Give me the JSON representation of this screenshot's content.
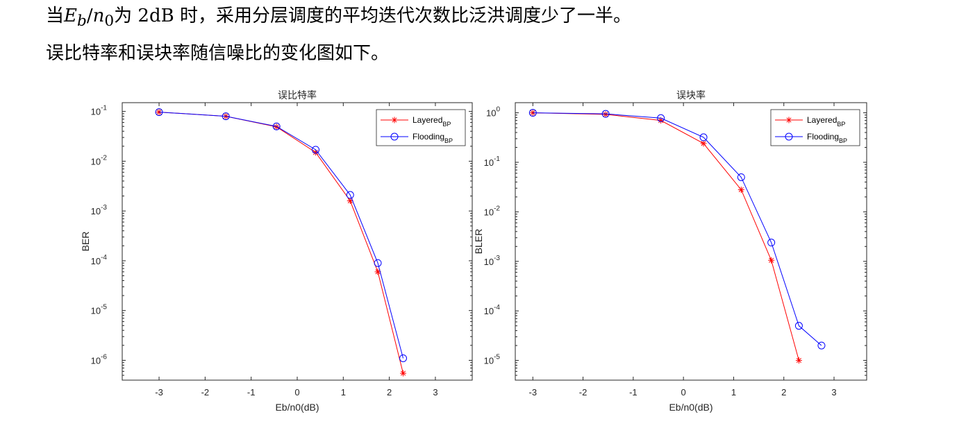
{
  "text": {
    "line1_prefix": "当",
    "var_E": "E",
    "var_E_sub": "b",
    "slash": "/",
    "var_n": "n",
    "var_n_sub": "0",
    "line1_suffix": "为 2dB 时，采用分层调度的平均迭代次数比泛洪调度少了一半。",
    "line2": "误比特率和误块率随信噪比的变化图如下。"
  },
  "chart_data": [
    {
      "type": "line",
      "title": "误比特率",
      "xlabel": "Eb/n0(dB)",
      "ylabel": "BER",
      "y_scale": "log",
      "xlim": [
        -3.8,
        3.8
      ],
      "ylim": [
        4e-07,
        0.15
      ],
      "x_ticks": [
        -3,
        -2,
        -1,
        0,
        1,
        2,
        3
      ],
      "y_ticks": [
        1e-06,
        1e-05,
        0.0001,
        0.001,
        0.01,
        0.1
      ],
      "y_tick_labels": [
        {
          "base": "10",
          "exp": "-6"
        },
        {
          "base": "10",
          "exp": "-5"
        },
        {
          "base": "10",
          "exp": "-4"
        },
        {
          "base": "10",
          "exp": "-3"
        },
        {
          "base": "10",
          "exp": "-2"
        },
        {
          "base": "10",
          "exp": "-1"
        }
      ],
      "legend_position": "top-right",
      "series": [
        {
          "name": "Layered",
          "name_sub": "BP",
          "color": "#ff0000",
          "marker": "star",
          "x": [
            -3,
            -1.55,
            -0.45,
            0.4,
            1.15,
            1.75,
            2.3
          ],
          "y": [
            0.097,
            0.08,
            0.049,
            0.015,
            0.0016,
            6e-05,
            5.5e-07
          ]
        },
        {
          "name": "Flooding",
          "name_sub": "BP",
          "color": "#0000ff",
          "marker": "circle",
          "x": [
            -3,
            -1.55,
            -0.45,
            0.4,
            1.15,
            1.75,
            2.3
          ],
          "y": [
            0.097,
            0.08,
            0.05,
            0.017,
            0.0021,
            9e-05,
            1.1e-06
          ]
        }
      ]
    },
    {
      "type": "line",
      "title": "误块率",
      "xlabel": "Eb/n0(dB)",
      "ylabel": "BLER",
      "y_scale": "log",
      "xlim": [
        -3.35,
        3.65
      ],
      "ylim": [
        4e-06,
        1.6
      ],
      "x_ticks": [
        -3,
        -2,
        -1,
        0,
        1,
        2,
        3
      ],
      "y_ticks": [
        1e-05,
        0.0001,
        0.001,
        0.01,
        0.1,
        1
      ],
      "y_tick_labels": [
        {
          "base": "10",
          "exp": "-5"
        },
        {
          "base": "10",
          "exp": "-4"
        },
        {
          "base": "10",
          "exp": "-3"
        },
        {
          "base": "10",
          "exp": "-2"
        },
        {
          "base": "10",
          "exp": "-1"
        },
        {
          "base": "10",
          "exp": "0"
        }
      ],
      "legend_position": "top-right",
      "series": [
        {
          "name": "Layered",
          "name_sub": "BP",
          "color": "#ff0000",
          "marker": "star",
          "x": [
            -3,
            -1.55,
            -0.45,
            0.4,
            1.15,
            1.75,
            2.3
          ],
          "y": [
            1.0,
            0.93,
            0.7,
            0.24,
            0.028,
            0.00105,
            1e-05
          ]
        },
        {
          "name": "Flooding",
          "name_sub": "BP",
          "color": "#0000ff",
          "marker": "circle",
          "x": [
            -3,
            -1.55,
            -0.45,
            0.4,
            1.15,
            1.75,
            2.3,
            2.75
          ],
          "y": [
            1.0,
            0.95,
            0.78,
            0.32,
            0.05,
            0.0024,
            5e-05,
            2e-05
          ]
        }
      ]
    }
  ]
}
